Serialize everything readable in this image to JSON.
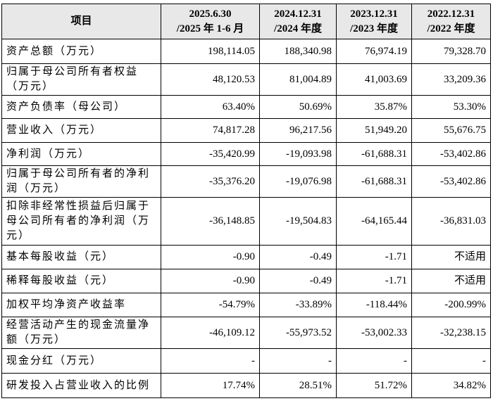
{
  "table": {
    "header": [
      [
        "项目"
      ],
      [
        "2025.6.30",
        "/2025 年 1-6 月"
      ],
      [
        "2024.12.31",
        "/2024 年度"
      ],
      [
        "2023.12.31",
        "/2023 年度"
      ],
      [
        "2022.12.31",
        "/2022 年度"
      ]
    ],
    "rows": [
      [
        "资产总额（万元）",
        "198,114.05",
        "188,340.98",
        "76,974.19",
        "79,328.70"
      ],
      [
        "归属于母公司所有者权益（万元）",
        "48,120.53",
        "81,004.89",
        "41,003.69",
        "33,209.36"
      ],
      [
        "资产负债率（母公司）",
        "63.40%",
        "50.69%",
        "35.87%",
        "53.30%"
      ],
      [
        "营业收入（万元）",
        "74,817.28",
        "96,217.56",
        "51,949.20",
        "55,676.75"
      ],
      [
        "净利润（万元）",
        "-35,420.99",
        "-19,093.98",
        "-61,688.31",
        "-53,402.86"
      ],
      [
        "归属于母公司所有者的净利润（万元）",
        "-35,376.20",
        "-19,076.98",
        "-61,688.31",
        "-53,402.86"
      ],
      [
        "扣除非经常性损益后归属于母公司所有者的净利润（万元）",
        "-36,148.85",
        "-19,504.83",
        "-64,165.44",
        "-36,831.03"
      ],
      [
        "基本每股收益（元）",
        "-0.90",
        "-0.49",
        "-1.71",
        "不适用"
      ],
      [
        "稀释每股收益（元）",
        "-0.90",
        "-0.49",
        "-1.71",
        "不适用"
      ],
      [
        "加权平均净资产收益率",
        "-54.79%",
        "-33.89%",
        "-118.44%",
        "-200.99%"
      ],
      [
        "经营活动产生的现金流量净额（万元）",
        "-46,109.12",
        "-55,973.52",
        "-53,002.33",
        "-32,238.15"
      ],
      [
        "现金分红（万元）",
        "-",
        "-",
        "-",
        "-"
      ],
      [
        "研发投入占营业收入的比例",
        "17.74%",
        "28.51%",
        "51.72%",
        "34.82%"
      ]
    ]
  }
}
